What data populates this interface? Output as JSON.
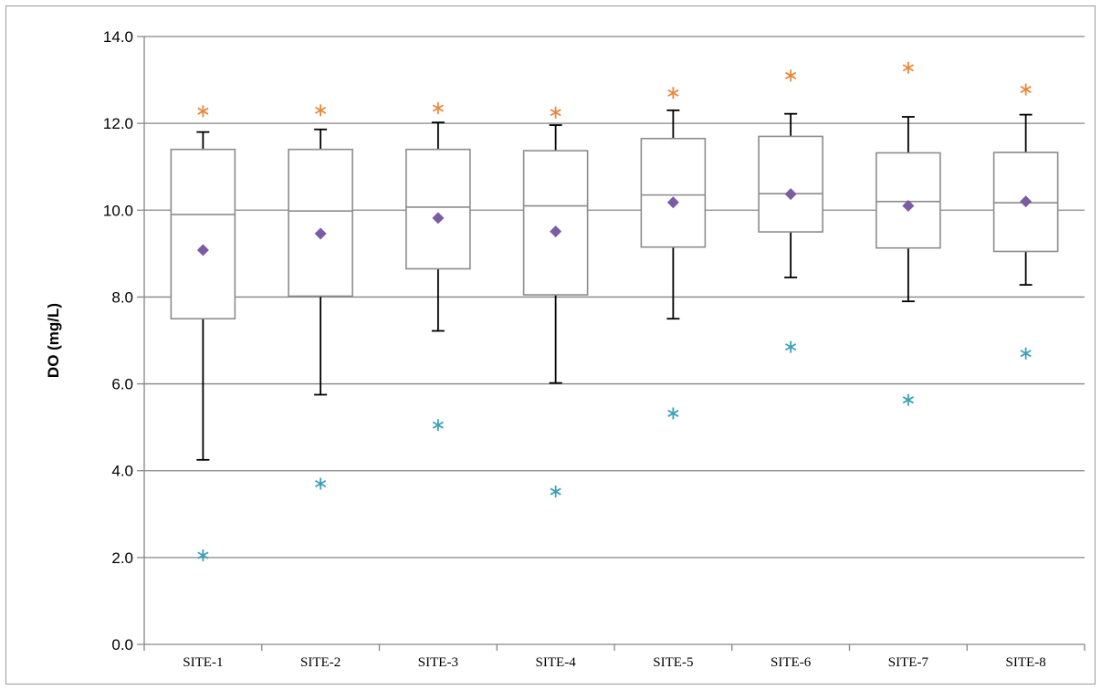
{
  "chart_data": {
    "type": "box",
    "categories": [
      "SITE-1",
      "SITE-2",
      "SITE-3",
      "SITE-4",
      "SITE-5",
      "SITE-6",
      "SITE-7",
      "SITE-8"
    ],
    "ylabel": "DO (mg/L)",
    "xlabel": "",
    "title": "",
    "ylim": [
      0,
      14
    ],
    "yticks": [
      "0.0",
      "2.0",
      "4.0",
      "6.0",
      "8.0",
      "10.0",
      "12.0",
      "14.0"
    ],
    "grid": true,
    "colors": {
      "box": "#8c8c8c",
      "whisker": "#000000",
      "grid": "#868686",
      "mean": "#7b5ba6",
      "max_marker": "#e8883a",
      "min_marker": "#3aa0b8"
    },
    "boxes": [
      {
        "whisker_low": 4.25,
        "q1": 7.5,
        "median": 9.9,
        "q3": 11.4,
        "whisker_high": 11.8,
        "mean": 9.08,
        "max": 12.28,
        "min": 2.05
      },
      {
        "whisker_low": 5.75,
        "q1": 8.02,
        "median": 9.98,
        "q3": 11.4,
        "whisker_high": 11.86,
        "mean": 9.46,
        "max": 12.3,
        "min": 3.7
      },
      {
        "whisker_low": 7.22,
        "q1": 8.65,
        "median": 10.07,
        "q3": 11.4,
        "whisker_high": 12.02,
        "mean": 9.82,
        "max": 12.35,
        "min": 5.05
      },
      {
        "whisker_low": 6.02,
        "q1": 8.05,
        "median": 10.1,
        "q3": 11.37,
        "whisker_high": 11.96,
        "mean": 9.51,
        "max": 12.25,
        "min": 3.52
      },
      {
        "whisker_low": 7.5,
        "q1": 9.15,
        "median": 10.35,
        "q3": 11.65,
        "whisker_high": 12.3,
        "mean": 10.18,
        "max": 12.7,
        "min": 5.32
      },
      {
        "whisker_low": 8.45,
        "q1": 9.5,
        "median": 10.38,
        "q3": 11.7,
        "whisker_high": 12.22,
        "mean": 10.37,
        "max": 13.1,
        "min": 6.85
      },
      {
        "whisker_low": 7.9,
        "q1": 9.13,
        "median": 10.2,
        "q3": 11.32,
        "whisker_high": 12.15,
        "mean": 10.1,
        "max": 13.28,
        "min": 5.63
      },
      {
        "whisker_low": 8.28,
        "q1": 9.05,
        "median": 10.17,
        "q3": 11.33,
        "whisker_high": 12.2,
        "mean": 10.2,
        "max": 12.78,
        "min": 6.7
      }
    ]
  }
}
